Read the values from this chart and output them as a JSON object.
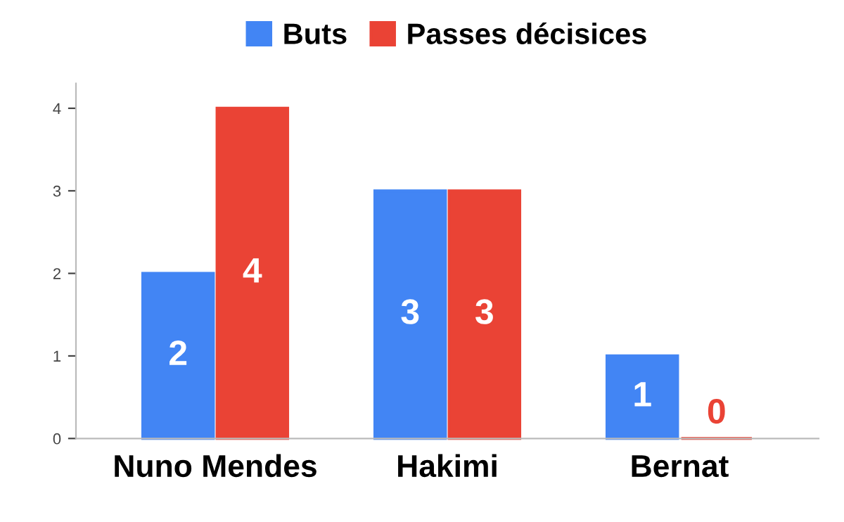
{
  "chart_data": {
    "type": "bar",
    "categories": [
      "Nuno Mendes",
      "Hakimi",
      "Bernat"
    ],
    "series": [
      {
        "name": "Buts",
        "color": "#4285f4",
        "values": [
          2,
          3,
          1
        ]
      },
      {
        "name": "Passes décisices",
        "color": "#ea4335",
        "values": [
          4,
          3,
          0
        ]
      }
    ],
    "ylim": [
      0,
      4.3
    ],
    "yticks": [
      0,
      1,
      2,
      3,
      4
    ],
    "data_labels": true,
    "legend": "top",
    "grid": false
  }
}
